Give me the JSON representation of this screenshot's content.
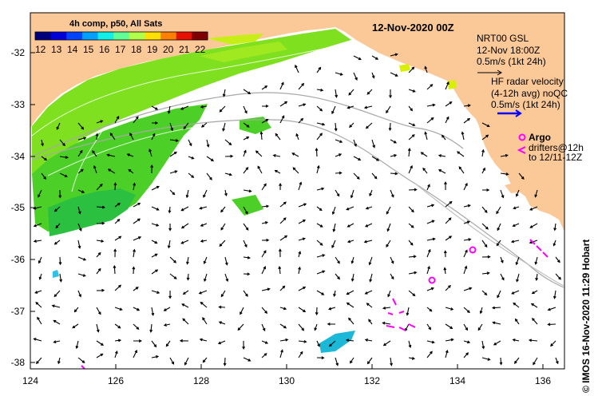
{
  "title": "12-Nov-2020 00Z",
  "colorbar": {
    "label": "4h comp, p50, All Sats",
    "ticks": [
      "12",
      "13",
      "14",
      "15",
      "16",
      "17",
      "18",
      "19",
      "20",
      "21",
      "22"
    ],
    "colors": [
      "#00007f",
      "#0000d8",
      "#0044ff",
      "#00a0ff",
      "#10f0e8",
      "#60ff98",
      "#b0ff48",
      "#ffe000",
      "#ff8000",
      "#e81000",
      "#800000"
    ]
  },
  "legend": {
    "model_line1": "NRT00 GSL",
    "model_line2": "12-Nov 18:00Z",
    "model_line3": "0.5m/s (1kt 24h)",
    "radar_line1": "HF radar velocity",
    "radar_line2": "(4-12h avg) noQC",
    "radar_line3": "0.5m/s (1kt 24h)",
    "argo": "Argo",
    "drifter_line1": "drifters@12h",
    "drifter_line2": "to 12/11-12Z",
    "argo_color": "#ff00ff",
    "radar_color": "#0000ff"
  },
  "axes": {
    "x_ticks": [
      "124",
      "126",
      "128",
      "130",
      "132",
      "134",
      "136"
    ],
    "y_ticks": [
      "-32",
      "-33",
      "-34",
      "-35",
      "-36",
      "-37",
      "-38"
    ],
    "lon_range": [
      124,
      136.6
    ],
    "lat_range": [
      -38.2,
      -31.2
    ]
  },
  "credit": "© IMOS 16-Nov-2020 11:29 Hobart",
  "colors": {
    "land": "#fbc898",
    "ocean": "#ffffff",
    "shelf_contour": "#a8a8a8"
  }
}
